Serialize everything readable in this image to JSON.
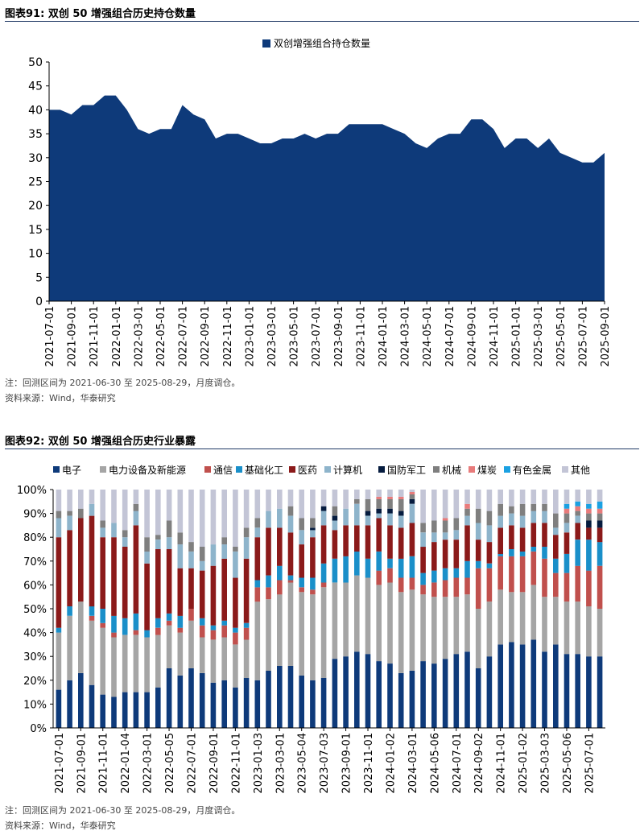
{
  "chart1": {
    "figure_title": "图表91:  双创 50 增强组合历史持仓数量",
    "note": "注：回测区间为 2021-06-30 至 2025-08-29，月度调仓。",
    "source": "资料来源：Wind，华泰研究",
    "colors": {
      "area": "#0e3a7a",
      "axis": "#000000"
    }
  },
  "chart2": {
    "figure_title": "图表92:  双创 50 增强组合历史行业暴露",
    "note": "注：回测区间为 2021-06-30 至 2025-08-29，月度调仓。",
    "source": "资料来源：Wind，华泰研究"
  },
  "chart_data": [
    {
      "type": "area",
      "title": "双创 50 增强组合历史持仓数量",
      "legend": [
        "双创增强组合持仓数量"
      ],
      "legend_position": "top-center",
      "ylim": [
        0,
        50
      ],
      "yticks": [
        0,
        5,
        10,
        15,
        20,
        25,
        30,
        35,
        40,
        45,
        50
      ],
      "x": [
        "2021-07",
        "2021-08",
        "2021-09",
        "2021-10",
        "2021-11",
        "2021-12",
        "2022-01",
        "2022-02",
        "2022-03",
        "2022-04",
        "2022-05",
        "2022-06",
        "2022-07",
        "2022-08",
        "2022-09",
        "2022-10",
        "2022-11",
        "2022-12",
        "2023-01",
        "2023-02",
        "2023-03",
        "2023-04",
        "2023-05",
        "2023-06",
        "2023-07",
        "2023-08",
        "2023-09",
        "2023-10",
        "2023-11",
        "2023-12",
        "2024-01",
        "2024-02",
        "2024-03",
        "2024-04",
        "2024-05",
        "2024-06",
        "2024-07",
        "2024-08",
        "2024-09",
        "2024-10",
        "2024-11",
        "2024-12",
        "2025-01",
        "2025-02",
        "2025-03",
        "2025-04",
        "2025-05",
        "2025-06",
        "2025-07",
        "2025-08",
        "2025-09"
      ],
      "values": [
        40,
        40,
        39,
        41,
        41,
        43,
        43,
        40,
        36,
        35,
        36,
        36,
        41,
        39,
        38,
        34,
        35,
        35,
        34,
        33,
        33,
        34,
        34,
        35,
        34,
        35,
        35,
        37,
        37,
        37,
        37,
        36,
        35,
        33,
        32,
        34,
        35,
        35,
        38,
        38,
        36,
        32,
        34,
        34,
        32,
        34,
        31,
        30,
        29,
        29,
        31
      ],
      "xticks": [
        "2021-07-01",
        "2021-09-01",
        "2021-11-01",
        "2022-01-01",
        "2022-03-01",
        "2022-05-01",
        "2022-07-01",
        "2022-09-01",
        "2022-11-01",
        "2023-01-01",
        "2023-03-01",
        "2023-05-01",
        "2023-07-01",
        "2023-09-01",
        "2023-11-01",
        "2024-01-01",
        "2024-03-01",
        "2024-05-01",
        "2024-07-01",
        "2024-09-01",
        "2024-11-01",
        "2025-01-01",
        "2025-03-01",
        "2025-05-01",
        "2025-07-01",
        "2025-09-01"
      ]
    },
    {
      "type": "bar",
      "stacked": true,
      "title": "双创 50 增强组合历史行业暴露",
      "ylim": [
        0,
        100
      ],
      "yticks": [
        "0%",
        "10%",
        "20%",
        "30%",
        "40%",
        "50%",
        "60%",
        "70%",
        "80%",
        "90%",
        "100%"
      ],
      "legend_position": "top",
      "categories": [
        "2021-07",
        "2021-08",
        "2021-09",
        "2021-10",
        "2021-11",
        "2021-12",
        "2022-01",
        "2022-02",
        "2022-03",
        "2022-04",
        "2022-05",
        "2022-06",
        "2022-07",
        "2022-08",
        "2022-09",
        "2022-10",
        "2022-11",
        "2022-12",
        "2023-01",
        "2023-02",
        "2023-03",
        "2023-04",
        "2023-05",
        "2023-06",
        "2023-07",
        "2023-08",
        "2023-09",
        "2023-10",
        "2023-11",
        "2023-12",
        "2024-01",
        "2024-02",
        "2024-03",
        "2024-04",
        "2024-05",
        "2024-06",
        "2024-07",
        "2024-08",
        "2024-09",
        "2024-10",
        "2024-11",
        "2024-12",
        "2025-01",
        "2025-02",
        "2025-03",
        "2025-04",
        "2025-05",
        "2025-06",
        "2025-07",
        "2025-08"
      ],
      "xticks": [
        "2021-07-01",
        "2021-09-01",
        "2021-11-01",
        "2022-01-04",
        "2022-03-01",
        "2022-05-05",
        "2022-07-01",
        "2022-09-01",
        "2022-11-01",
        "2023-01-03",
        "2023-03-01",
        "2023-05-04",
        "2023-07-03",
        "2023-09-01",
        "2023-11-01",
        "2024-01-02",
        "2024-03-01",
        "2024-05-06",
        "2024-07-01",
        "2024-09-02",
        "2024-11-01",
        "2025-01-02",
        "2025-03-03",
        "2025-05-06",
        "2025-07-01"
      ],
      "series": [
        {
          "name": "电子",
          "color": "#0e3a7a",
          "values": [
            16,
            20,
            23,
            18,
            14,
            13,
            15,
            15,
            15,
            17,
            25,
            22,
            25,
            23,
            19,
            20,
            17,
            21,
            20,
            24,
            26,
            26,
            22,
            20,
            21,
            29,
            30,
            32,
            31,
            28,
            27,
            23,
            24,
            28,
            27,
            29,
            31,
            32,
            25,
            30,
            35,
            36,
            35,
            37,
            32,
            35,
            31,
            31,
            30,
            30
          ]
        },
        {
          "name": "电力设备及新能源",
          "color": "#a5a5a5",
          "values": [
            24,
            27,
            30,
            27,
            28,
            25,
            24,
            24,
            23,
            22,
            18,
            18,
            20,
            15,
            18,
            18,
            18,
            16,
            33,
            30,
            30,
            35,
            35,
            36,
            38,
            32,
            31,
            32,
            32,
            32,
            34,
            34,
            34,
            28,
            28,
            26,
            24,
            24,
            25,
            23,
            23,
            21,
            22,
            23,
            23,
            20,
            22,
            22,
            21,
            20
          ]
        },
        {
          "name": "通信",
          "color": "#c0504d",
          "values": [
            0,
            0,
            0,
            2,
            2,
            2,
            0,
            2,
            0,
            3,
            2,
            2,
            5,
            5,
            4,
            5,
            5,
            5,
            6,
            5,
            6,
            1,
            2,
            2,
            2,
            0,
            0,
            0,
            0,
            6,
            6,
            6,
            5,
            4,
            6,
            7,
            8,
            7,
            17,
            14,
            14,
            15,
            15,
            14,
            16,
            10,
            12,
            15,
            15,
            18
          ]
        },
        {
          "name": "基础化工",
          "color": "#1a8fc9",
          "values": [
            2,
            4,
            0,
            4,
            6,
            7,
            7,
            7,
            3,
            4,
            3,
            5,
            0,
            3,
            2,
            2,
            2,
            2,
            3,
            5,
            6,
            2,
            4,
            5,
            8,
            10,
            11,
            10,
            8,
            8,
            4,
            8,
            9,
            5,
            5,
            5,
            4,
            7,
            3,
            2,
            1,
            3,
            2,
            2,
            5,
            6,
            8,
            11,
            13,
            10
          ]
        },
        {
          "name": "医药",
          "color": "#8b1a1a",
          "values": [
            38,
            32,
            35,
            38,
            30,
            33,
            30,
            37,
            28,
            29,
            27,
            20,
            17,
            20,
            25,
            26,
            21,
            27,
            18,
            20,
            16,
            18,
            14,
            17,
            16,
            12,
            13,
            11,
            14,
            14,
            14,
            13,
            14,
            11,
            12,
            12,
            12,
            15,
            9,
            9,
            11,
            10,
            10,
            10,
            10,
            10,
            9,
            7,
            5,
            6
          ]
        },
        {
          "name": "计算机",
          "color": "#8eb4cb",
          "values": [
            8,
            6,
            0,
            5,
            4,
            6,
            4,
            6,
            5,
            4,
            5,
            10,
            7,
            4,
            9,
            6,
            11,
            9,
            4,
            7,
            8,
            7,
            6,
            3,
            6,
            4,
            7,
            9,
            4,
            2,
            5,
            5,
            8,
            6,
            4,
            3,
            4,
            4,
            7,
            7,
            5,
            5,
            5,
            5,
            5,
            3,
            4,
            3,
            0,
            0
          ]
        },
        {
          "name": "国防军工",
          "color": "#061c3f",
          "values": [
            0,
            0,
            0,
            0,
            0,
            0,
            0,
            0,
            0,
            0,
            0,
            0,
            0,
            0,
            0,
            0,
            0,
            0,
            0,
            0,
            0,
            0,
            0,
            1,
            2,
            2,
            0,
            0,
            2,
            2,
            2,
            2,
            2,
            0,
            0,
            0,
            0,
            0,
            0,
            0,
            0,
            0,
            0,
            0,
            0,
            0,
            0,
            0,
            3,
            3
          ]
        },
        {
          "name": "机械",
          "color": "#7f7f7f",
          "values": [
            3,
            2,
            4,
            0,
            3,
            0,
            3,
            3,
            6,
            2,
            7,
            5,
            4,
            6,
            0,
            3,
            2,
            4,
            4,
            0,
            0,
            4,
            5,
            4,
            0,
            4,
            0,
            2,
            5,
            4,
            4,
            5,
            2,
            4,
            5,
            5,
            5,
            3,
            6,
            6,
            5,
            3,
            5,
            3,
            3,
            6,
            4,
            2,
            3,
            3
          ]
        },
        {
          "name": "煤炭",
          "color": "#e87b7b",
          "values": [
            0,
            0,
            0,
            0,
            0,
            0,
            0,
            0,
            0,
            0,
            0,
            0,
            0,
            0,
            0,
            0,
            0,
            0,
            0,
            0,
            0,
            0,
            0,
            0,
            0,
            0,
            0,
            0,
            0,
            1,
            1,
            1,
            1,
            0,
            0,
            1,
            0,
            2,
            0,
            0,
            0,
            0,
            0,
            0,
            0,
            0,
            2,
            2,
            2,
            2
          ]
        },
        {
          "name": "有色金属",
          "color": "#1ba1e2",
          "values": [
            0,
            0,
            0,
            0,
            0,
            0,
            0,
            0,
            0,
            0,
            0,
            0,
            0,
            0,
            0,
            0,
            0,
            0,
            0,
            0,
            0,
            0,
            0,
            0,
            0,
            0,
            0,
            0,
            0,
            0,
            0,
            0,
            0,
            0,
            0,
            0,
            0,
            0,
            0,
            0,
            0,
            0,
            0,
            0,
            0,
            0,
            2,
            2,
            2,
            3
          ]
        },
        {
          "name": "其他",
          "color": "#c3c5d6",
          "values": [
            9,
            9,
            8,
            6,
            13,
            14,
            17,
            6,
            20,
            19,
            13,
            18,
            22,
            24,
            23,
            20,
            24,
            16,
            12,
            9,
            8,
            7,
            12,
            12,
            7,
            7,
            8,
            4,
            4,
            3,
            3,
            3,
            1,
            14,
            13,
            12,
            12,
            6,
            8,
            9,
            6,
            7,
            6,
            6,
            6,
            10,
            6,
            5,
            6,
            5
          ]
        }
      ]
    }
  ]
}
